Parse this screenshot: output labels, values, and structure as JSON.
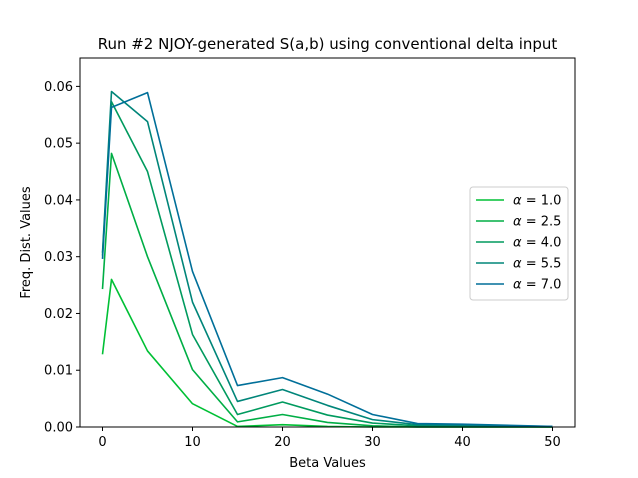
{
  "chart_data": {
    "type": "line",
    "title": "Run #2 NJOY-generated S(a,b) using conventional delta input",
    "xlabel": "Beta Values",
    "ylabel": "Freq. Dist. Values",
    "xlim": [
      -2.5,
      52.5
    ],
    "ylim": [
      0,
      0.065
    ],
    "xticks": [
      0,
      10,
      20,
      30,
      40,
      50
    ],
    "xtick_labels": [
      "0",
      "10",
      "20",
      "30",
      "40",
      "50"
    ],
    "yticks": [
      0.0,
      0.01,
      0.02,
      0.03,
      0.04,
      0.05,
      0.06
    ],
    "ytick_labels": [
      "0.00",
      "0.01",
      "0.02",
      "0.03",
      "0.04",
      "0.05",
      "0.06"
    ],
    "grid": false,
    "legend_position": "center-right",
    "x": [
      0,
      1,
      5,
      10,
      15,
      20,
      25,
      30,
      35,
      40,
      50
    ],
    "series": [
      {
        "name": "α = 1.0",
        "label_prefix": "α",
        "label_value": "= 1.0",
        "color": "#00c035",
        "values": [
          0.0128,
          0.026,
          0.0134,
          0.0041,
          0.0001,
          0.0004,
          0.0001,
          0.0,
          0.0,
          0.0,
          0.0
        ]
      },
      {
        "name": "α = 2.5",
        "label_prefix": "α",
        "label_value": "= 2.5",
        "color": "#00ae45",
        "values": [
          0.0243,
          0.0482,
          0.03,
          0.0101,
          0.0009,
          0.0022,
          0.0008,
          0.0002,
          0.0,
          0.0,
          0.0
        ]
      },
      {
        "name": "α = 4.0",
        "label_prefix": "α",
        "label_value": "= 4.0",
        "color": "#009a5e",
        "values": [
          0.0302,
          0.0573,
          0.045,
          0.0163,
          0.0022,
          0.0044,
          0.0021,
          0.0007,
          0.0002,
          0.0002,
          0.0
        ]
      },
      {
        "name": "α = 5.5",
        "label_prefix": "α",
        "label_value": "= 5.5",
        "color": "#008579",
        "values": [
          0.0307,
          0.0591,
          0.0538,
          0.022,
          0.0045,
          0.0066,
          0.0038,
          0.0013,
          0.0004,
          0.0003,
          0.0001
        ]
      },
      {
        "name": "α = 7.0",
        "label_prefix": "α",
        "label_value": "= 7.0",
        "color": "#006f99",
        "values": [
          0.0296,
          0.0563,
          0.0589,
          0.0274,
          0.0073,
          0.0087,
          0.0058,
          0.0022,
          0.0006,
          0.0005,
          0.0001
        ]
      }
    ]
  }
}
